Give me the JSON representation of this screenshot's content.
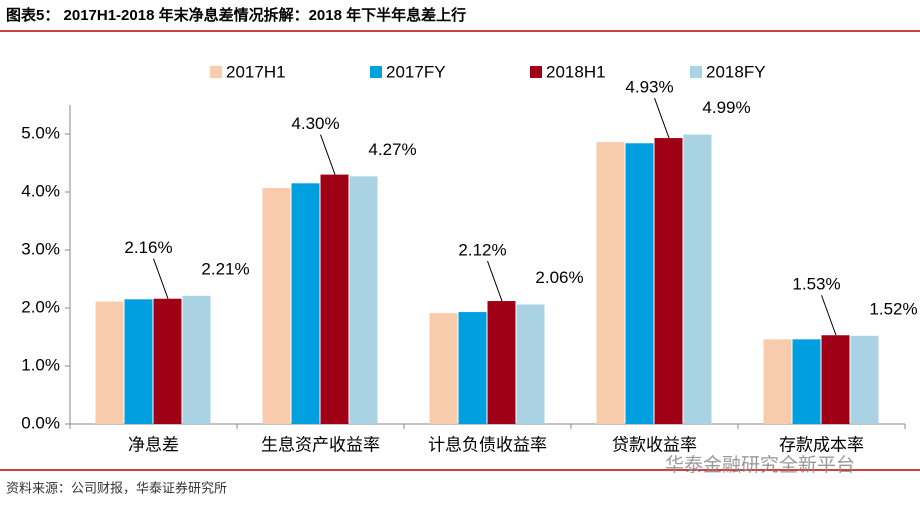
{
  "chart_data": {
    "type": "bar",
    "title": "图表5： 2017H1-2018 年末净息差情况拆解：2018 年下半年息差上行",
    "source": "资料来源：公司财报，华泰证券研究所",
    "watermark": "华泰金融研究全新平台",
    "categories": [
      "净息差",
      "生息资产收益率",
      "计息负债收益率",
      "贷款收益率",
      "存款成本率"
    ],
    "series": [
      {
        "name": "2017H1",
        "color": "#F8CBAD",
        "values": [
          2.11,
          4.07,
          1.91,
          4.86,
          1.46
        ]
      },
      {
        "name": "2017FY",
        "color": "#00A0E0",
        "values": [
          2.15,
          4.15,
          1.93,
          4.84,
          1.46
        ]
      },
      {
        "name": "2018H1",
        "color": "#A00016",
        "values": [
          2.16,
          4.3,
          2.12,
          4.93,
          1.53
        ],
        "value_labels": [
          "2.16%",
          "4.30%",
          "2.12%",
          "4.93%",
          "1.53%"
        ]
      },
      {
        "name": "2018FY",
        "color": "#A9D2E3",
        "values": [
          2.21,
          4.27,
          2.06,
          4.99,
          1.52
        ],
        "value_labels": [
          "2.21%",
          "4.27%",
          "2.06%",
          "4.99%",
          "1.52%"
        ]
      }
    ],
    "ylim": [
      0,
      5.5
    ],
    "yticks": [
      {
        "value": 0,
        "label": "0.0%"
      },
      {
        "value": 1,
        "label": "1.0%"
      },
      {
        "value": 2,
        "label": "2.0%"
      },
      {
        "value": 3,
        "label": "3.0%"
      },
      {
        "value": 4,
        "label": "4.0%"
      },
      {
        "value": 5,
        "label": "5.0%"
      }
    ]
  }
}
